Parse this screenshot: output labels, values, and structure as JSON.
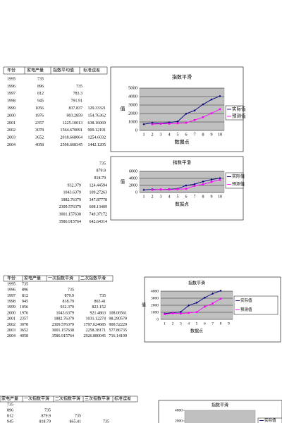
{
  "tables": [
    {
      "header": [
        "年份",
        "家电产量",
        "指数平均值",
        "标准误差"
      ],
      "rows": [
        [
          "1995",
          "735",
          null,
          null
        ],
        [
          "1996",
          "896",
          "735",
          null
        ],
        [
          "1997",
          "812",
          "783.3",
          null
        ],
        [
          "1998",
          "945",
          "791.91",
          null
        ],
        [
          "1999",
          "1056",
          "837.837",
          "129.33321"
        ],
        [
          "2000",
          "1976",
          "903.2859",
          "154.76362"
        ],
        [
          "2001",
          "2357",
          "1225.10013",
          "638.16069"
        ],
        [
          "2002",
          "3078",
          "1564.670091",
          "909.12191"
        ],
        [
          "2003",
          "3652",
          "2018.668064",
          "1254.6032"
        ],
        [
          "2004",
          "4058",
          "2508.668345",
          "1442.1205"
        ]
      ]
    },
    {
      "rows": [
        [
          "735",
          null
        ],
        [
          "879.9",
          null
        ],
        [
          "818.79",
          null
        ],
        [
          "932.379",
          "124.44594"
        ],
        [
          "1043.6379",
          "109.27263"
        ],
        [
          "1882.76379",
          "347.87778"
        ],
        [
          "2309.576379",
          "608.13409"
        ],
        [
          "3001.157638",
          "749.37172"
        ],
        [
          "3586.915764",
          "642.64314"
        ]
      ]
    },
    {
      "header": [
        "年份",
        "家电产量",
        "一次指数平滑",
        "二次指数平滑"
      ],
      "rows": [
        [
          "1995",
          "735",
          null,
          null,
          null
        ],
        [
          "1996",
          "896",
          "735",
          null,
          null
        ],
        [
          "1997",
          "812",
          "879.9",
          "735",
          null
        ],
        [
          "1998",
          "945",
          "818.79",
          "865.41",
          null
        ],
        [
          "1999",
          "1056",
          "932.379",
          "823.152",
          null
        ],
        [
          "2000",
          "1976",
          "1043.6379",
          "921.4863",
          "108.06561"
        ],
        [
          "2001",
          "2357",
          "1882.76379",
          "1031.12274",
          "98.290579"
        ],
        [
          "2002",
          "3078",
          "2309.576379",
          "1797.624685",
          "900.52229"
        ],
        [
          "2003",
          "3652",
          "3001.157638",
          "2258.38171",
          "577.86735"
        ],
        [
          "2004",
          "4058",
          "3586.915764",
          "2926.880045",
          "716.14109"
        ]
      ]
    },
    {
      "header": [
        "家电产量",
        "一次指数平滑",
        "二次指数平滑",
        "三次指数平滑",
        "标准误差"
      ],
      "rows": [
        [
          "735",
          null,
          null,
          null
        ],
        [
          "896",
          "735",
          null,
          null
        ],
        [
          "812",
          "879.9",
          "735",
          null
        ],
        [
          "945",
          "818.79",
          "865.41",
          "735"
        ]
      ]
    }
  ],
  "chart_data": [
    {
      "type": "line",
      "title": "指数平滑",
      "x_label": "数据点",
      "y_label": "值",
      "categories": [
        1,
        2,
        3,
        4,
        5,
        6,
        7,
        8,
        9,
        10
      ],
      "series": [
        {
          "name": "实际值",
          "color": "#000080",
          "values": [
            735,
            896,
            812,
            945,
            1056,
            1976,
            2357,
            3078,
            3652,
            4058
          ]
        },
        {
          "name": "预测值",
          "color": "#ff00ff",
          "values": [
            null,
            735,
            783.3,
            791.91,
            837.837,
            903.2859,
            1225.10013,
            1564.670091,
            2018.668064,
            2508.668345
          ]
        }
      ],
      "ylim": [
        0,
        5000
      ],
      "yticks": [
        0,
        1000,
        2000,
        3000,
        4000,
        5000
      ],
      "grid": true
    },
    {
      "type": "line",
      "title": "指数平滑",
      "x_label": "数据点",
      "y_label": "值",
      "categories": [
        1,
        2,
        3,
        4,
        5,
        6,
        7,
        8,
        9,
        10
      ],
      "series": [
        {
          "name": "实际值",
          "color": "#000080",
          "values": [
            735,
            896,
            812,
            945,
            1056,
            1976,
            2357,
            3078,
            3652,
            4058
          ]
        },
        {
          "name": "预测值",
          "color": "#ff00ff",
          "values": [
            null,
            735,
            879.9,
            818.79,
            932.379,
            1043.6379,
            1882.76379,
            2309.576379,
            3001.157638,
            3586.915764
          ]
        }
      ],
      "ylim": [
        0,
        6000
      ],
      "yticks": [
        0,
        2000,
        4000,
        6000
      ],
      "grid": true
    },
    {
      "type": "line",
      "title": "指数平滑",
      "x_label": "数据点",
      "y_label": "值",
      "categories": [
        1,
        2,
        3,
        4,
        5,
        6,
        7,
        8,
        9
      ],
      "series": [
        {
          "name": "实际值",
          "color": "#000080",
          "values": [
            812,
            945,
            1056,
            1976,
            2357,
            3078,
            3652,
            4058,
            null
          ]
        },
        {
          "name": "预测值",
          "color": "#ff00ff",
          "values": [
            735,
            865.41,
            823.152,
            921.4863,
            1031.12274,
            1797.624685,
            2258.38171,
            2926.880045,
            null
          ]
        }
      ],
      "ylim": [
        0,
        4000
      ],
      "yticks": [
        0,
        1000,
        2000,
        3000,
        4000
      ],
      "grid": true
    },
    {
      "type": "line",
      "title": "指数平滑",
      "series": [
        {
          "name": "实际值",
          "color": "#000080"
        }
      ],
      "yticks": [
        2000,
        4000
      ]
    }
  ]
}
